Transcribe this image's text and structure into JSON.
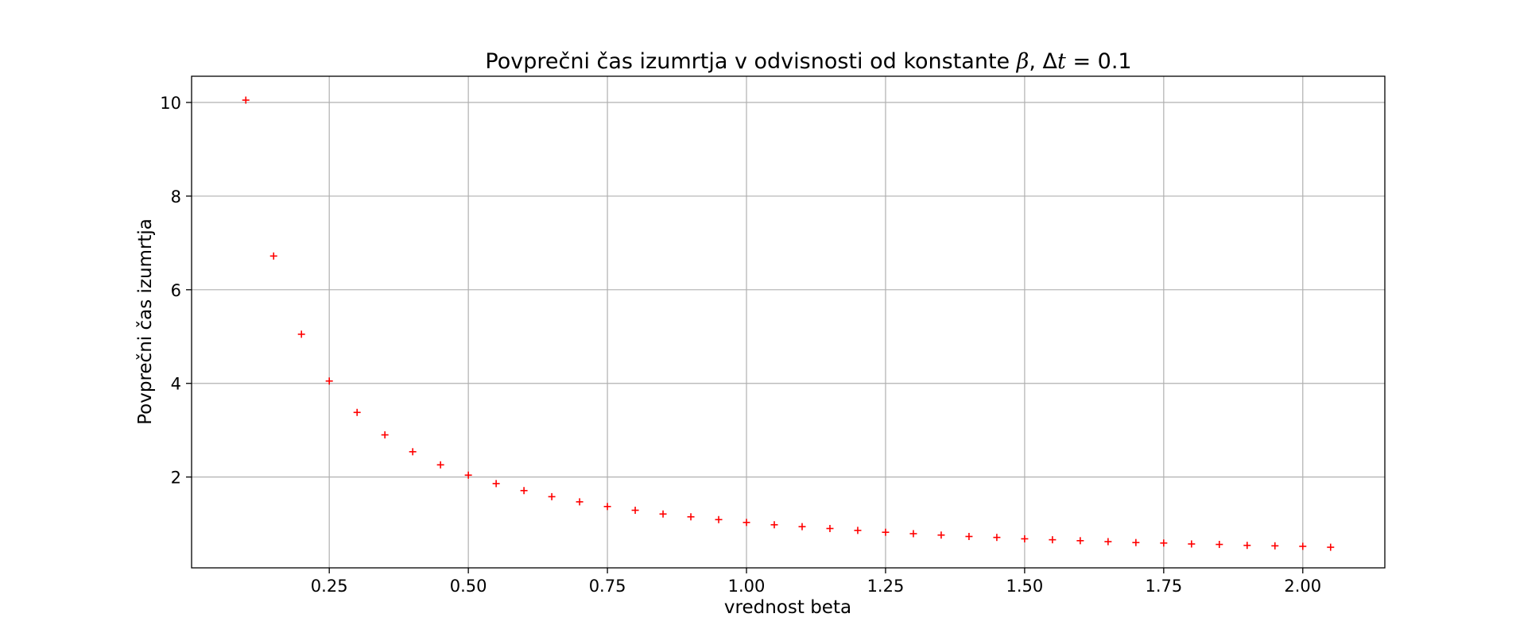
{
  "chart_data": {
    "type": "scatter",
    "title": {
      "prefix": "Povprečni čas izumrtja v odvisnosti od konstante ",
      "beta_symbol": "β",
      "middle": ", Δ",
      "t_symbol": "t",
      "suffix": " = 0.1"
    },
    "xlabel": "vrednost beta",
    "ylabel": "Povprečni čas izumrtja",
    "xlim": [
      0.0025,
      2.1475
    ],
    "ylim": [
      0.06,
      10.56
    ],
    "xticks": [
      0.25,
      0.5,
      0.75,
      1.0,
      1.25,
      1.5,
      1.75,
      2.0
    ],
    "xtick_labels": [
      "0.25",
      "0.50",
      "0.75",
      "1.00",
      "1.25",
      "1.50",
      "1.75",
      "2.00"
    ],
    "yticks": [
      2,
      4,
      6,
      8,
      10
    ],
    "ytick_labels": [
      "2",
      "4",
      "6",
      "8",
      "10"
    ],
    "grid": true,
    "marker": "+",
    "color": "#ff0000",
    "x": [
      0.1,
      0.15,
      0.2,
      0.25,
      0.3,
      0.35,
      0.4,
      0.45,
      0.5,
      0.55,
      0.6,
      0.65,
      0.7,
      0.75,
      0.8,
      0.85,
      0.9,
      0.95,
      1.0,
      1.05,
      1.1,
      1.15,
      1.2,
      1.25,
      1.3,
      1.35,
      1.4,
      1.45,
      1.5,
      1.55,
      1.6,
      1.65,
      1.7,
      1.75,
      1.8,
      1.85,
      1.9,
      1.95,
      2.0,
      2.05
    ],
    "y": [
      10.05,
      6.72,
      5.05,
      4.05,
      3.38,
      2.9,
      2.54,
      2.26,
      2.04,
      1.86,
      1.71,
      1.58,
      1.47,
      1.37,
      1.29,
      1.21,
      1.15,
      1.09,
      1.03,
      0.98,
      0.94,
      0.9,
      0.86,
      0.82,
      0.79,
      0.76,
      0.73,
      0.71,
      0.68,
      0.66,
      0.64,
      0.62,
      0.6,
      0.59,
      0.57,
      0.56,
      0.54,
      0.53,
      0.52,
      0.5
    ]
  }
}
